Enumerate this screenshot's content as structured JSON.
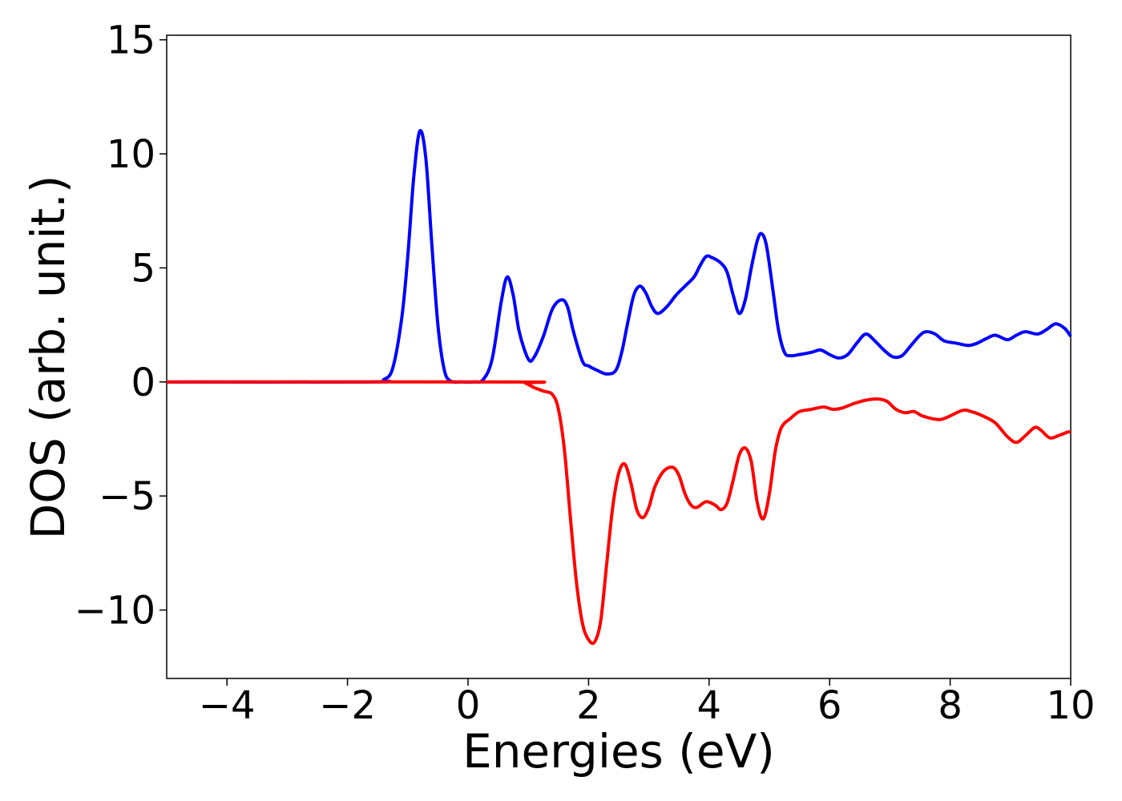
{
  "chart_data": {
    "type": "line",
    "title": "",
    "xlabel": "Energies (eV)",
    "ylabel": "DOS (arb. unit.)",
    "xlim": [
      -5,
      10
    ],
    "ylim": [
      -13,
      15.2
    ],
    "grid": false,
    "legend": "none",
    "xticks": [
      -4,
      -2,
      0,
      2,
      4,
      6,
      8,
      10
    ],
    "yticks": [
      -10,
      -5,
      0,
      5,
      10,
      15
    ],
    "xtick_labels": [
      "−4",
      "−2",
      "0",
      "2",
      "4",
      "6",
      "8",
      "10"
    ],
    "ytick_labels": [
      "−10",
      "−5",
      "0",
      "5",
      "10",
      "15"
    ],
    "series": [
      {
        "color": "#0000ff",
        "points": [
          [
            -5,
            0
          ],
          [
            -1.6,
            0
          ],
          [
            -1.4,
            0.1
          ],
          [
            -1.25,
            0.6
          ],
          [
            -1.1,
            2.8
          ],
          [
            -1.0,
            5.5
          ],
          [
            -0.9,
            9.0
          ],
          [
            -0.8,
            11.0
          ],
          [
            -0.7,
            9.8
          ],
          [
            -0.6,
            6.0
          ],
          [
            -0.5,
            2.5
          ],
          [
            -0.4,
            0.6
          ],
          [
            -0.3,
            0.05
          ],
          [
            -0.1,
            0
          ],
          [
            0.1,
            0
          ],
          [
            0.25,
            0.1
          ],
          [
            0.4,
            1.0
          ],
          [
            0.55,
            3.5
          ],
          [
            0.65,
            4.6
          ],
          [
            0.75,
            3.8
          ],
          [
            0.85,
            2.2
          ],
          [
            1.0,
            1.0
          ],
          [
            1.1,
            1.1
          ],
          [
            1.25,
            2.0
          ],
          [
            1.4,
            3.2
          ],
          [
            1.55,
            3.6
          ],
          [
            1.65,
            3.3
          ],
          [
            1.75,
            2.2
          ],
          [
            1.9,
            0.9
          ],
          [
            2.0,
            0.7
          ],
          [
            2.15,
            0.5
          ],
          [
            2.3,
            0.35
          ],
          [
            2.45,
            0.5
          ],
          [
            2.55,
            1.3
          ],
          [
            2.65,
            2.6
          ],
          [
            2.75,
            3.8
          ],
          [
            2.85,
            4.2
          ],
          [
            2.95,
            3.9
          ],
          [
            3.05,
            3.3
          ],
          [
            3.15,
            3.0
          ],
          [
            3.3,
            3.3
          ],
          [
            3.45,
            3.8
          ],
          [
            3.6,
            4.2
          ],
          [
            3.75,
            4.6
          ],
          [
            3.85,
            5.1
          ],
          [
            3.95,
            5.5
          ],
          [
            4.05,
            5.45
          ],
          [
            4.2,
            5.2
          ],
          [
            4.3,
            4.8
          ],
          [
            4.4,
            3.8
          ],
          [
            4.5,
            3.0
          ],
          [
            4.6,
            3.6
          ],
          [
            4.7,
            5.0
          ],
          [
            4.8,
            6.2
          ],
          [
            4.87,
            6.5
          ],
          [
            4.95,
            6.0
          ],
          [
            5.05,
            4.2
          ],
          [
            5.15,
            2.3
          ],
          [
            5.25,
            1.3
          ],
          [
            5.35,
            1.15
          ],
          [
            5.5,
            1.2
          ],
          [
            5.7,
            1.3
          ],
          [
            5.85,
            1.4
          ],
          [
            6.0,
            1.2
          ],
          [
            6.15,
            1.05
          ],
          [
            6.3,
            1.2
          ],
          [
            6.45,
            1.7
          ],
          [
            6.6,
            2.1
          ],
          [
            6.75,
            1.8
          ],
          [
            6.9,
            1.4
          ],
          [
            7.05,
            1.1
          ],
          [
            7.2,
            1.15
          ],
          [
            7.35,
            1.6
          ],
          [
            7.5,
            2.05
          ],
          [
            7.6,
            2.2
          ],
          [
            7.75,
            2.1
          ],
          [
            7.9,
            1.8
          ],
          [
            8.1,
            1.7
          ],
          [
            8.3,
            1.6
          ],
          [
            8.45,
            1.7
          ],
          [
            8.6,
            1.9
          ],
          [
            8.75,
            2.05
          ],
          [
            8.95,
            1.85
          ],
          [
            9.1,
            2.05
          ],
          [
            9.25,
            2.2
          ],
          [
            9.45,
            2.1
          ],
          [
            9.6,
            2.3
          ],
          [
            9.75,
            2.55
          ],
          [
            9.9,
            2.35
          ],
          [
            10.0,
            2.0
          ]
        ]
      },
      {
        "color": "#ff0000",
        "points": [
          [
            -5,
            0
          ],
          [
            0.8,
            0
          ],
          [
            0.95,
            -0.05
          ],
          [
            1.1,
            -0.25
          ],
          [
            1.25,
            -0.4
          ],
          [
            1.4,
            -0.55
          ],
          [
            1.5,
            -1.2
          ],
          [
            1.6,
            -3.0
          ],
          [
            1.7,
            -6.0
          ],
          [
            1.8,
            -8.8
          ],
          [
            1.9,
            -10.6
          ],
          [
            2.0,
            -11.3
          ],
          [
            2.1,
            -11.4
          ],
          [
            2.2,
            -10.5
          ],
          [
            2.3,
            -8.0
          ],
          [
            2.4,
            -5.5
          ],
          [
            2.5,
            -4.0
          ],
          [
            2.6,
            -3.6
          ],
          [
            2.7,
            -4.4
          ],
          [
            2.8,
            -5.6
          ],
          [
            2.9,
            -5.95
          ],
          [
            3.0,
            -5.5
          ],
          [
            3.1,
            -4.6
          ],
          [
            3.25,
            -3.9
          ],
          [
            3.4,
            -3.75
          ],
          [
            3.5,
            -4.1
          ],
          [
            3.6,
            -4.9
          ],
          [
            3.7,
            -5.4
          ],
          [
            3.8,
            -5.5
          ],
          [
            3.95,
            -5.25
          ],
          [
            4.1,
            -5.4
          ],
          [
            4.2,
            -5.6
          ],
          [
            4.3,
            -5.3
          ],
          [
            4.4,
            -4.3
          ],
          [
            4.5,
            -3.2
          ],
          [
            4.6,
            -2.9
          ],
          [
            4.7,
            -3.5
          ],
          [
            4.8,
            -5.3
          ],
          [
            4.9,
            -6.0
          ],
          [
            5.0,
            -4.9
          ],
          [
            5.1,
            -3.0
          ],
          [
            5.2,
            -2.0
          ],
          [
            5.35,
            -1.6
          ],
          [
            5.5,
            -1.3
          ],
          [
            5.7,
            -1.2
          ],
          [
            5.9,
            -1.1
          ],
          [
            6.05,
            -1.2
          ],
          [
            6.2,
            -1.15
          ],
          [
            6.4,
            -0.95
          ],
          [
            6.6,
            -0.8
          ],
          [
            6.8,
            -0.75
          ],
          [
            6.95,
            -0.85
          ],
          [
            7.1,
            -1.2
          ],
          [
            7.25,
            -1.35
          ],
          [
            7.4,
            -1.3
          ],
          [
            7.55,
            -1.5
          ],
          [
            7.8,
            -1.65
          ],
          [
            7.95,
            -1.55
          ],
          [
            8.2,
            -1.25
          ],
          [
            8.35,
            -1.3
          ],
          [
            8.55,
            -1.5
          ],
          [
            8.75,
            -1.8
          ],
          [
            8.95,
            -2.4
          ],
          [
            9.1,
            -2.65
          ],
          [
            9.25,
            -2.35
          ],
          [
            9.4,
            -2.0
          ],
          [
            9.5,
            -2.1
          ],
          [
            9.65,
            -2.45
          ],
          [
            9.8,
            -2.35
          ],
          [
            9.95,
            -2.2
          ],
          [
            10.0,
            -2.2
          ]
        ]
      }
    ]
  }
}
